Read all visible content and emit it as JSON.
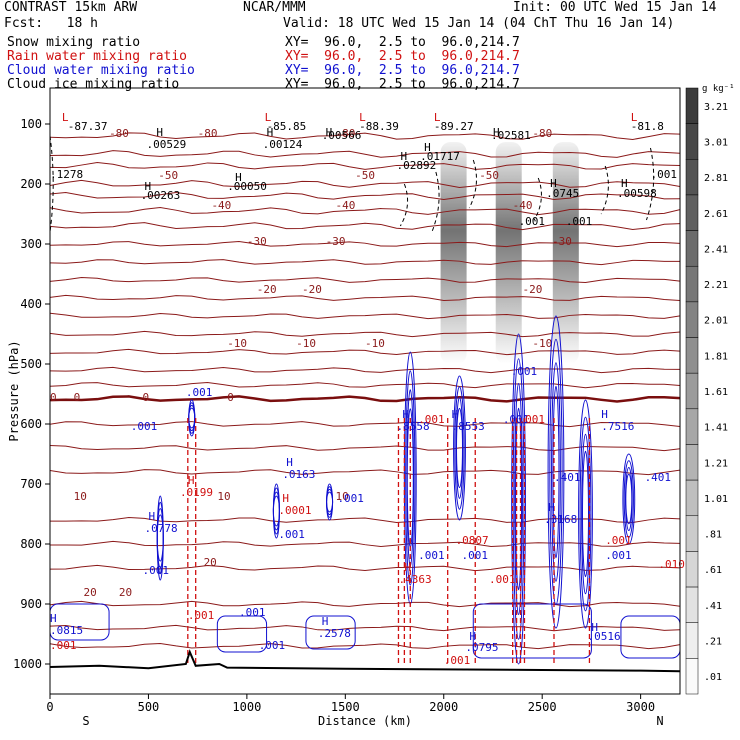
{
  "header": {
    "title_left": "CONTRAST 15km ARW",
    "title_center": "NCAR/MMM",
    "init": "Init: 00 UTC Wed 15 Jan 14",
    "fcst": "Fcst:   18 h",
    "valid": "Valid: 18 UTC Wed 15 Jan 14 (04 ChT Thu 16 Jan 14)"
  },
  "fields": [
    {
      "label": "Snow mixing ratio",
      "xy": "XY=  96.0,  2.5 to  96.0,214.7",
      "color": "#000000"
    },
    {
      "label": "Rain water mixing ratio",
      "xy": "XY=  96.0,  2.5 to  96.0,214.7",
      "color": "#d01010"
    },
    {
      "label": "Cloud water mixing ratio",
      "xy": "XY=  96.0,  2.5 to  96.0,214.7",
      "color": "#1010d0"
    },
    {
      "label": "Cloud ice mixing ratio",
      "xy": "XY=  96.0,  2.5 to  96.0,214.7",
      "color": "#000000"
    }
  ],
  "chart_data": {
    "type": "contour",
    "title": "CONTRAST 15km ARW",
    "xlabel": "Distance (km)",
    "ylabel": "Pressure (hPa)",
    "xlim": [
      0,
      3200
    ],
    "ylim": [
      1050,
      40
    ],
    "x_ticks": [
      0,
      500,
      1000,
      1500,
      2000,
      2500,
      3000
    ],
    "y_ticks": [
      100,
      200,
      300,
      400,
      500,
      600,
      700,
      800,
      900,
      1000
    ],
    "x_end_labels": {
      "left": "S",
      "right": "N"
    },
    "temperature_contours": [
      {
        "label": "20",
        "p": 880
      },
      {
        "label": "10",
        "p": 720
      },
      {
        "label": "0",
        "p": 555
      },
      {
        "label": "-10",
        "p": 465
      },
      {
        "label": "-20",
        "p": 375
      },
      {
        "label": "-30",
        "p": 295
      },
      {
        "label": "-40",
        "p": 235
      },
      {
        "label": "-50",
        "p": 185
      },
      {
        "label": "-80",
        "p": 115
      }
    ],
    "colorbar": {
      "units": "g kg⁻¹",
      "labels": [
        "3.21",
        "3.01",
        "2.81",
        "2.61",
        "2.41",
        "2.21",
        "2.01",
        "1.81",
        "1.61",
        "1.41",
        "1.21",
        "1.01",
        ".81",
        ".61",
        ".41",
        ".21",
        ".01"
      ]
    },
    "extrema_labels": [
      {
        "t": "L",
        "x": 60,
        "p": 95,
        "c": "red"
      },
      {
        "t": "-87.37",
        "x": 90,
        "p": 110,
        "c": "blk"
      },
      {
        "t": "L",
        "x": 1090,
        "p": 95,
        "c": "red"
      },
      {
        "t": "-85.85",
        "x": 1100,
        "p": 110,
        "c": "blk"
      },
      {
        "t": "L",
        "x": 1570,
        "p": 95,
        "c": "red"
      },
      {
        "t": "-88.39",
        "x": 1570,
        "p": 110,
        "c": "blk"
      },
      {
        "t": "L",
        "x": 1950,
        "p": 95,
        "c": "red"
      },
      {
        "t": "-89.27",
        "x": 1950,
        "p": 110,
        "c": "blk"
      },
      {
        "t": "L",
        "x": 2950,
        "p": 95,
        "c": "red"
      },
      {
        "t": "-81.8",
        "x": 2950,
        "p": 110,
        "c": "blk"
      },
      {
        "t": "H",
        "x": 540,
        "p": 120,
        "c": "blk"
      },
      {
        "t": ".00529",
        "x": 490,
        "p": 140,
        "c": "blk"
      },
      {
        "t": "H",
        "x": 1100,
        "p": 120,
        "c": "blk"
      },
      {
        "t": ".00124",
        "x": 1080,
        "p": 140,
        "c": "blk"
      },
      {
        "t": "H",
        "x": 1400,
        "p": 120,
        "c": "blk"
      },
      {
        "t": ".00566",
        "x": 1380,
        "p": 125,
        "c": "blk"
      },
      {
        "t": "H",
        "x": 2250,
        "p": 120,
        "c": "blk"
      },
      {
        "t": ".02581",
        "x": 2240,
        "p": 125,
        "c": "blk"
      },
      {
        "t": "H",
        "x": 1900,
        "p": 145,
        "c": "blk"
      },
      {
        "t": ".01717",
        "x": 1880,
        "p": 160,
        "c": "blk"
      },
      {
        "t": "H",
        "x": 1780,
        "p": 160,
        "c": "blk"
      },
      {
        "t": ".02892",
        "x": 1760,
        "p": 175,
        "c": "blk"
      },
      {
        "t": ".1278",
        "x": 0,
        "p": 190,
        "c": "blk"
      },
      {
        "t": "H",
        "x": 480,
        "p": 210,
        "c": "blk"
      },
      {
        "t": ".00263",
        "x": 460,
        "p": 225,
        "c": "blk"
      },
      {
        "t": "H",
        "x": 940,
        "p": 195,
        "c": "blk"
      },
      {
        "t": ".00050",
        "x": 900,
        "p": 210,
        "c": "blk"
      },
      {
        "t": "H",
        "x": 2540,
        "p": 205,
        "c": "blk"
      },
      {
        "t": ".0745",
        "x": 2520,
        "p": 222,
        "c": "blk"
      },
      {
        "t": "H",
        "x": 2900,
        "p": 205,
        "c": "blk"
      },
      {
        "t": ".00598",
        "x": 2880,
        "p": 222,
        "c": "blk"
      },
      {
        "t": ".001",
        "x": 3050,
        "p": 190,
        "c": "blk"
      },
      {
        "t": ".001",
        "x": 2380,
        "p": 268,
        "c": "blk"
      },
      {
        "t": ".001",
        "x": 2620,
        "p": 268,
        "c": "blk"
      },
      {
        "t": ".001",
        "x": 690,
        "p": 553,
        "c": "blu"
      },
      {
        "t": ".001",
        "x": 410,
        "p": 610,
        "c": "blu"
      },
      {
        "t": "H",
        "x": 1790,
        "p": 590,
        "c": "blu"
      },
      {
        "t": ".8558",
        "x": 1760,
        "p": 610,
        "c": "blu"
      },
      {
        "t": "H",
        "x": 2040,
        "p": 590,
        "c": "blu"
      },
      {
        "t": ".8553",
        "x": 2040,
        "p": 610,
        "c": "blu"
      },
      {
        "t": "H",
        "x": 2800,
        "p": 590,
        "c": "blu"
      },
      {
        "t": ".7516",
        "x": 2800,
        "p": 610,
        "c": "blu"
      },
      {
        "t": ".001",
        "x": 1870,
        "p": 598,
        "c": "red"
      },
      {
        "t": ".001",
        "x": 2300,
        "p": 598,
        "c": "blu"
      },
      {
        "t": ".001",
        "x": 2380,
        "p": 598,
        "c": "red"
      },
      {
        "t": ".001",
        "x": 2340,
        "p": 518,
        "c": "blu"
      },
      {
        "t": "H",
        "x": 1200,
        "p": 670,
        "c": "blu"
      },
      {
        "t": ".0163",
        "x": 1180,
        "p": 690,
        "c": "blu"
      },
      {
        "t": "H",
        "x": 700,
        "p": 700,
        "c": "red"
      },
      {
        "t": ".0199",
        "x": 660,
        "p": 720,
        "c": "red"
      },
      {
        "t": "H",
        "x": 1180,
        "p": 730,
        "c": "red"
      },
      {
        "t": ".0001",
        "x": 1160,
        "p": 750,
        "c": "red"
      },
      {
        "t": ".001",
        "x": 1160,
        "p": 790,
        "c": "blu"
      },
      {
        "t": ".001",
        "x": 1460,
        "p": 730,
        "c": "blu"
      },
      {
        "t": "H",
        "x": 500,
        "p": 760,
        "c": "blu"
      },
      {
        "t": ".0778",
        "x": 480,
        "p": 780,
        "c": "blu"
      },
      {
        "t": ".001",
        "x": 470,
        "p": 850,
        "c": "blu"
      },
      {
        "t": ".401",
        "x": 2560,
        "p": 695,
        "c": "blu"
      },
      {
        "t": ".401",
        "x": 3020,
        "p": 695,
        "c": "blu"
      },
      {
        "t": "H",
        "x": 2530,
        "p": 745,
        "c": "blu"
      },
      {
        "t": ".3168",
        "x": 2510,
        "p": 765,
        "c": "blu"
      },
      {
        "t": ".0807",
        "x": 2060,
        "p": 800,
        "c": "red"
      },
      {
        "t": ".001",
        "x": 1870,
        "p": 825,
        "c": "blu"
      },
      {
        "t": ".001",
        "x": 2090,
        "p": 825,
        "c": "blu"
      },
      {
        "t": ".001",
        "x": 2230,
        "p": 865,
        "c": "red"
      },
      {
        "t": ".001",
        "x": 2820,
        "p": 800,
        "c": "red"
      },
      {
        "t": ".001",
        "x": 2820,
        "p": 825,
        "c": "blu"
      },
      {
        "t": ".010",
        "x": 3090,
        "p": 840,
        "c": "red"
      },
      {
        "t": "H",
        "x": 1800,
        "p": 845,
        "c": "red"
      },
      {
        "t": ".4363",
        "x": 1770,
        "p": 865,
        "c": "red"
      },
      {
        "t": ".001",
        "x": 700,
        "p": 925,
        "c": "red"
      },
      {
        "t": ".001",
        "x": 960,
        "p": 920,
        "c": "blu"
      },
      {
        "t": ".001",
        "x": 1060,
        "p": 975,
        "c": "blu"
      },
      {
        "t": "H",
        "x": 1380,
        "p": 935,
        "c": "blu"
      },
      {
        "t": ".2578",
        "x": 1360,
        "p": 955,
        "c": "blu"
      },
      {
        "t": "H",
        "x": 0,
        "p": 930,
        "c": "blu"
      },
      {
        "t": ".0815",
        "x": 0,
        "p": 950,
        "c": "blu"
      },
      {
        "t": ".001",
        "x": 0,
        "p": 975,
        "c": "red"
      },
      {
        "t": "H",
        "x": 2130,
        "p": 960,
        "c": "blu"
      },
      {
        "t": ".0795",
        "x": 2110,
        "p": 978,
        "c": "blu"
      },
      {
        "t": "H",
        "x": 2750,
        "p": 945,
        "c": "blu"
      },
      {
        "t": ".0516",
        "x": 2730,
        "p": 960,
        "c": "blu"
      },
      {
        "t": ".001",
        "x": 2000,
        "p": 1000,
        "c": "red"
      }
    ]
  }
}
